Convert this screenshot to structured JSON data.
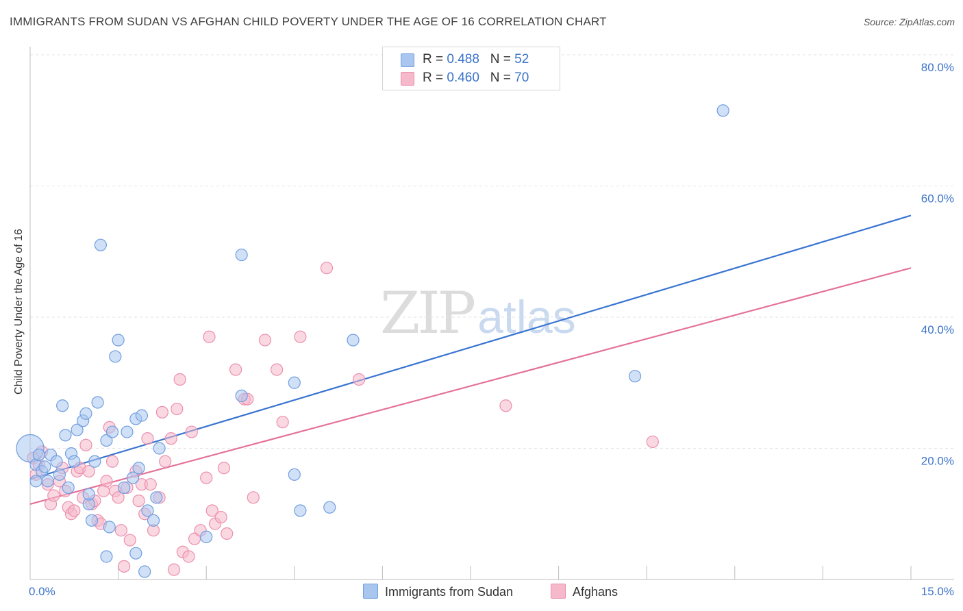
{
  "header": {
    "title": "IMMIGRANTS FROM SUDAN VS AFGHAN CHILD POVERTY UNDER THE AGE OF 16 CORRELATION CHART",
    "source": "Source: ZipAtlas.com"
  },
  "watermark": {
    "zip": "ZIP",
    "atlas": "atlas"
  },
  "legend_top": {
    "sudan": {
      "r_label": "R = ",
      "r_value": "0.488",
      "n_label": "N = ",
      "n_value": "52"
    },
    "afghans": {
      "r_label": "R = ",
      "r_value": "0.460",
      "n_label": "N = ",
      "n_value": "70"
    }
  },
  "legend_bottom": {
    "sudan": "Immigrants from Sudan",
    "afghans": "Afghans"
  },
  "colors": {
    "sudan_fill": "#a9c6ef",
    "sudan_stroke": "#6f9ee0",
    "sudan_line": "#3874d0",
    "afghan_fill": "#f6b8cb",
    "afghan_stroke": "#ec8fae",
    "afghan_line": "#e4719a",
    "grid": "#e3e3e3",
    "tick": "#3b73c9"
  },
  "chart_data": {
    "type": "scatter",
    "title": "IMMIGRANTS FROM SUDAN VS AFGHAN CHILD POVERTY UNDER THE AGE OF 16 CORRELATION CHART",
    "xlabel": "",
    "ylabel": "Child Poverty Under the Age of 16",
    "xlim": [
      0,
      15
    ],
    "ylim": [
      0,
      80
    ],
    "x_ticks": [
      "0.0%",
      "15.0%"
    ],
    "y_ticks": [
      {
        "value": 20,
        "label": "20.0%"
      },
      {
        "value": 40,
        "label": "40.0%"
      },
      {
        "value": 60,
        "label": "60.0%"
      },
      {
        "value": 80,
        "label": "80.0%"
      }
    ],
    "grid": true,
    "legend_position": "top-center",
    "series": [
      {
        "name": "Immigrants from Sudan",
        "r": 0.488,
        "n": 52,
        "trend": {
          "x0": 0,
          "y0": 15.3,
          "x1": 15,
          "y1": 55.5
        },
        "points": [
          {
            "x": 0.0,
            "y": 20.0,
            "big": true
          },
          {
            "x": 0.1,
            "y": 17.5
          },
          {
            "x": 0.15,
            "y": 19.0
          },
          {
            "x": 0.2,
            "y": 16.5
          },
          {
            "x": 0.1,
            "y": 15.0
          },
          {
            "x": 0.25,
            "y": 17.2
          },
          {
            "x": 0.35,
            "y": 19.0
          },
          {
            "x": 0.45,
            "y": 18.0
          },
          {
            "x": 0.5,
            "y": 16.0
          },
          {
            "x": 0.3,
            "y": 15.0
          },
          {
            "x": 0.55,
            "y": 26.5
          },
          {
            "x": 0.6,
            "y": 22.0
          },
          {
            "x": 0.7,
            "y": 19.2
          },
          {
            "x": 0.75,
            "y": 18.0
          },
          {
            "x": 0.8,
            "y": 22.8
          },
          {
            "x": 0.9,
            "y": 24.2
          },
          {
            "x": 0.95,
            "y": 25.3
          },
          {
            "x": 1.0,
            "y": 11.5
          },
          {
            "x": 1.1,
            "y": 18.0
          },
          {
            "x": 1.15,
            "y": 27.0
          },
          {
            "x": 1.2,
            "y": 51.0
          },
          {
            "x": 1.3,
            "y": 21.2
          },
          {
            "x": 1.4,
            "y": 22.5
          },
          {
            "x": 1.45,
            "y": 34.0
          },
          {
            "x": 1.5,
            "y": 36.5
          },
          {
            "x": 1.6,
            "y": 14.0
          },
          {
            "x": 1.65,
            "y": 22.5
          },
          {
            "x": 1.8,
            "y": 24.5
          },
          {
            "x": 1.85,
            "y": 17.0
          },
          {
            "x": 1.9,
            "y": 25.0
          },
          {
            "x": 2.0,
            "y": 10.5
          },
          {
            "x": 2.1,
            "y": 9.0
          },
          {
            "x": 2.2,
            "y": 20.0
          },
          {
            "x": 1.75,
            "y": 15.5
          },
          {
            "x": 0.65,
            "y": 14.0
          },
          {
            "x": 1.0,
            "y": 13.0
          },
          {
            "x": 1.35,
            "y": 8.0
          },
          {
            "x": 1.3,
            "y": 3.5
          },
          {
            "x": 1.8,
            "y": 4.0
          },
          {
            "x": 1.95,
            "y": 1.2
          },
          {
            "x": 1.05,
            "y": 9.0
          },
          {
            "x": 2.15,
            "y": 12.5
          },
          {
            "x": 3.0,
            "y": 6.5
          },
          {
            "x": 3.6,
            "y": 28.0
          },
          {
            "x": 3.6,
            "y": 49.5
          },
          {
            "x": 4.5,
            "y": 30.0
          },
          {
            "x": 4.5,
            "y": 16.0
          },
          {
            "x": 4.6,
            "y": 10.5
          },
          {
            "x": 5.1,
            "y": 11.0
          },
          {
            "x": 5.5,
            "y": 36.5
          },
          {
            "x": 10.3,
            "y": 31.0
          },
          {
            "x": 11.8,
            "y": 71.5
          }
        ]
      },
      {
        "name": "Afghans",
        "r": 0.46,
        "n": 70,
        "trend": {
          "x0": 0,
          "y0": 11.5,
          "x1": 15,
          "y1": 47.5
        },
        "points": [
          {
            "x": 0.05,
            "y": 18.5
          },
          {
            "x": 0.1,
            "y": 16.0
          },
          {
            "x": 0.15,
            "y": 17.5
          },
          {
            "x": 0.2,
            "y": 19.5
          },
          {
            "x": 0.3,
            "y": 14.5
          },
          {
            "x": 0.35,
            "y": 11.5
          },
          {
            "x": 0.4,
            "y": 12.8
          },
          {
            "x": 0.5,
            "y": 15.0
          },
          {
            "x": 0.55,
            "y": 17.0
          },
          {
            "x": 0.6,
            "y": 13.5
          },
          {
            "x": 0.65,
            "y": 11.0
          },
          {
            "x": 0.7,
            "y": 10.0
          },
          {
            "x": 0.75,
            "y": 10.5
          },
          {
            "x": 0.8,
            "y": 16.5
          },
          {
            "x": 0.85,
            "y": 17.0
          },
          {
            "x": 0.9,
            "y": 12.5
          },
          {
            "x": 0.95,
            "y": 20.5
          },
          {
            "x": 1.0,
            "y": 16.5
          },
          {
            "x": 1.05,
            "y": 11.5
          },
          {
            "x": 1.1,
            "y": 12.0
          },
          {
            "x": 1.15,
            "y": 9.0
          },
          {
            "x": 1.2,
            "y": 8.5
          },
          {
            "x": 1.25,
            "y": 13.5
          },
          {
            "x": 1.3,
            "y": 15.0
          },
          {
            "x": 1.35,
            "y": 23.2
          },
          {
            "x": 1.4,
            "y": 18.0
          },
          {
            "x": 1.45,
            "y": 13.5
          },
          {
            "x": 1.5,
            "y": 12.5
          },
          {
            "x": 1.55,
            "y": 7.5
          },
          {
            "x": 1.6,
            "y": 2.0
          },
          {
            "x": 1.65,
            "y": 14.0
          },
          {
            "x": 1.7,
            "y": 6.0
          },
          {
            "x": 1.8,
            "y": 16.5
          },
          {
            "x": 1.85,
            "y": 12.0
          },
          {
            "x": 1.9,
            "y": 14.5
          },
          {
            "x": 2.0,
            "y": 21.5
          },
          {
            "x": 2.05,
            "y": 14.5
          },
          {
            "x": 2.1,
            "y": 7.5
          },
          {
            "x": 2.2,
            "y": 12.5
          },
          {
            "x": 2.3,
            "y": 18.0
          },
          {
            "x": 2.4,
            "y": 21.5
          },
          {
            "x": 2.5,
            "y": 26.0
          },
          {
            "x": 2.55,
            "y": 30.5
          },
          {
            "x": 2.6,
            "y": 4.2
          },
          {
            "x": 2.7,
            "y": 3.5
          },
          {
            "x": 2.8,
            "y": 6.2
          },
          {
            "x": 2.9,
            "y": 7.5
          },
          {
            "x": 3.0,
            "y": 15.5
          },
          {
            "x": 3.1,
            "y": 10.5
          },
          {
            "x": 3.15,
            "y": 8.5
          },
          {
            "x": 3.25,
            "y": 9.5
          },
          {
            "x": 3.3,
            "y": 17.0
          },
          {
            "x": 3.35,
            "y": 7.0
          },
          {
            "x": 3.5,
            "y": 32.0
          },
          {
            "x": 3.65,
            "y": 27.5
          },
          {
            "x": 3.8,
            "y": 12.5
          },
          {
            "x": 4.0,
            "y": 36.5
          },
          {
            "x": 4.2,
            "y": 32.0
          },
          {
            "x": 4.3,
            "y": 24.0
          },
          {
            "x": 4.6,
            "y": 37.0
          },
          {
            "x": 5.05,
            "y": 47.5
          },
          {
            "x": 5.6,
            "y": 30.5
          },
          {
            "x": 8.1,
            "y": 26.5
          },
          {
            "x": 10.6,
            "y": 21.0
          },
          {
            "x": 2.25,
            "y": 25.5
          },
          {
            "x": 1.95,
            "y": 10.0
          },
          {
            "x": 2.45,
            "y": 1.5
          },
          {
            "x": 2.75,
            "y": 22.5
          },
          {
            "x": 3.05,
            "y": 37.0
          },
          {
            "x": 3.7,
            "y": 27.5
          }
        ]
      }
    ]
  }
}
